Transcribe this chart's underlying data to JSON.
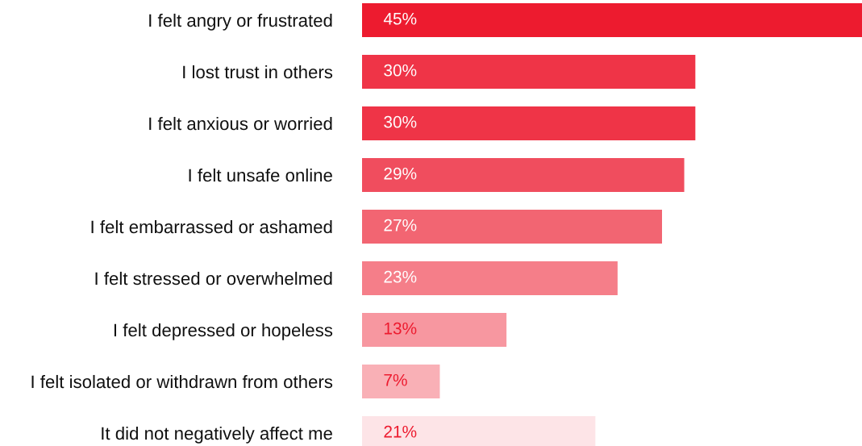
{
  "chart_data": {
    "type": "bar",
    "orientation": "horizontal",
    "categories": [
      "I felt angry or frustrated",
      "I lost trust in others",
      "I felt anxious or worried",
      "I felt unsafe online",
      "I felt embarrassed or ashamed",
      "I felt stressed or overwhelmed",
      "I felt depressed or hopeless",
      "I felt isolated or withdrawn from others",
      "It did not negatively affect me"
    ],
    "values": [
      45,
      30,
      30,
      29,
      27,
      23,
      13,
      7,
      21
    ],
    "value_labels": [
      "45%",
      "30%",
      "30%",
      "29%",
      "27%",
      "23%",
      "13%",
      "7%",
      "21%"
    ],
    "colors": [
      "#ed1b2f",
      "#ef3447",
      "#ef3447",
      "#f04d5e",
      "#f26572",
      "#f57e89",
      "#f797a0",
      "#f9b0b6",
      "#fde4e7"
    ],
    "grid": false,
    "legend": false
  }
}
